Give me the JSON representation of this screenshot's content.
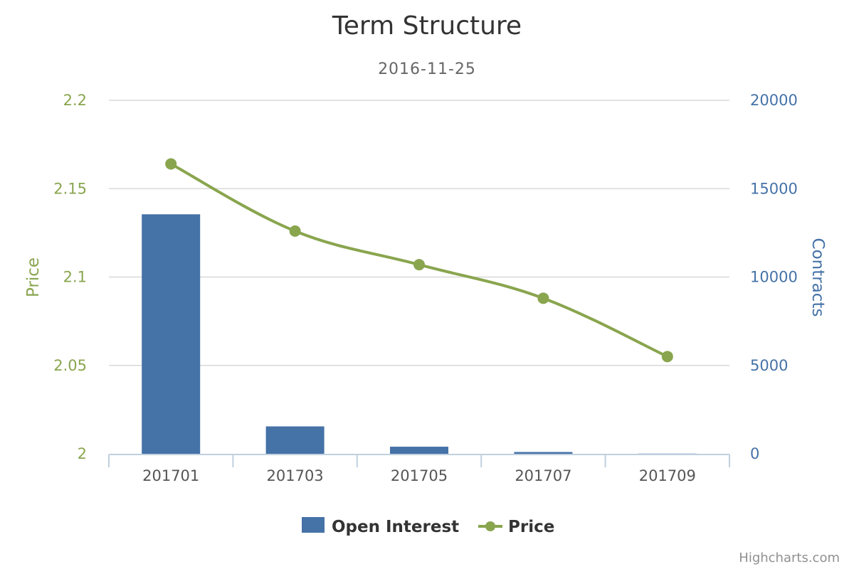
{
  "chart_data": {
    "type": "bar",
    "title": "Term Structure",
    "subtitle": "2016-11-25",
    "categories": [
      "201701",
      "201703",
      "201705",
      "201707",
      "201709"
    ],
    "series": [
      {
        "name": "Open Interest",
        "type": "column",
        "axis": "right",
        "color": "#4572a7",
        "values": [
          13550,
          1550,
          400,
          100,
          10
        ]
      },
      {
        "name": "Price",
        "type": "spline",
        "axis": "left",
        "color": "#89a54e",
        "values": [
          2.164,
          2.126,
          2.107,
          2.088,
          2.055
        ]
      }
    ],
    "y_left": {
      "label": "Price",
      "ylim": [
        2,
        2.2
      ],
      "ticks": [
        2,
        2.05,
        2.1,
        2.15,
        2.2
      ],
      "tick_labels": [
        "2",
        "2.05",
        "2.1",
        "2.15",
        "2.2"
      ]
    },
    "y_right": {
      "label": "Contracts",
      "ylim": [
        0,
        20000
      ],
      "ticks": [
        0,
        5000,
        10000,
        15000,
        20000
      ],
      "tick_labels": [
        "0",
        "5000",
        "10000",
        "15000",
        "20000"
      ]
    },
    "grid": true,
    "legend": "bottom-center"
  },
  "credits": "Highcharts.com"
}
